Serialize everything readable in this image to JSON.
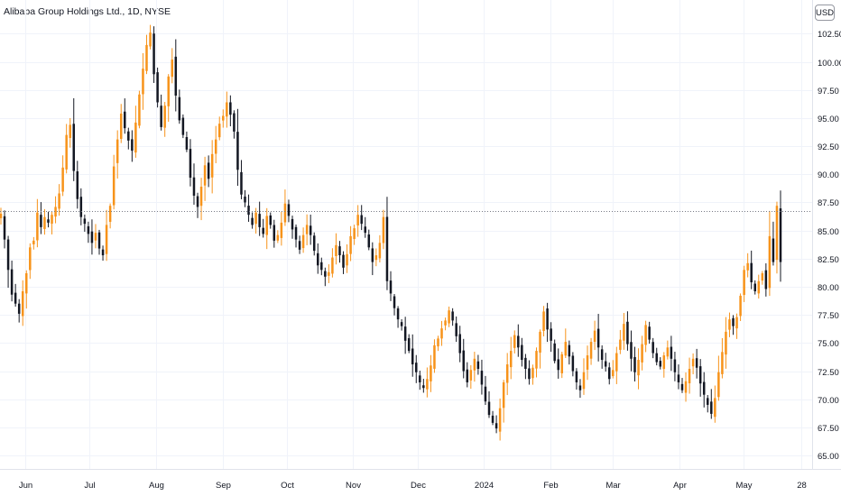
{
  "chart_data": {
    "type": "candlestick",
    "title": "Alibaba Group Holdings Ltd., 1D, NYSE",
    "currency": "USD",
    "y_ticks": [
      "65.00",
      "67.50",
      "70.00",
      "72.50",
      "75.00",
      "77.50",
      "80.00",
      "82.50",
      "85.00",
      "87.50",
      "90.00",
      "92.50",
      "95.00",
      "97.50",
      "100.00",
      "102.50"
    ],
    "ylim": [
      63.8,
      105.5
    ],
    "x_ticks": [
      {
        "label": "Jun",
        "day": 0
      },
      {
        "label": "Jul",
        "day": 30
      },
      {
        "label": "Aug",
        "day": 61
      },
      {
        "label": "Sep",
        "day": 92
      },
      {
        "label": "Oct",
        "day": 122
      },
      {
        "label": "Nov",
        "day": 153
      },
      {
        "label": "Dec",
        "day": 183
      },
      {
        "label": "2024",
        "day": 214
      },
      {
        "label": "Feb",
        "day": 245
      },
      {
        "label": "Mar",
        "day": 274
      },
      {
        "label": "Apr",
        "day": 305
      },
      {
        "label": "May",
        "day": 335
      },
      {
        "label": "28",
        "day": 362
      }
    ],
    "reference_price": 86.7,
    "closes": [
      86.5,
      84.2,
      81.5,
      79.3,
      78.5,
      77.6,
      79.6,
      81.2,
      83.5,
      84.1,
      86.6,
      85.3,
      86.2,
      85.7,
      86.4,
      87.1,
      88.3,
      90.6,
      93.5,
      94.4,
      90.3,
      87.8,
      86.2,
      85.6,
      84.7,
      83.9,
      84.8,
      83.4,
      82.8,
      85.5,
      87.2,
      90.7,
      93.1,
      95.4,
      94.1,
      93.0,
      92.1,
      94.6,
      97.1,
      99.4,
      101.5,
      102.6,
      98.9,
      96.4,
      94.2,
      96.1,
      98.7,
      100.2,
      97.0,
      94.8,
      93.5,
      92.2,
      89.7,
      88.1,
      87.1,
      88.9,
      90.8,
      89.6,
      91.8,
      93.1,
      94.5,
      95.2,
      96.4,
      95.3,
      93.8,
      90.4,
      88.2,
      87.5,
      86.4,
      85.5,
      86.6,
      85.3,
      84.7,
      86.3,
      85.5,
      84.1,
      84.6,
      85.7,
      87.4,
      86.3,
      85.1,
      84.2,
      83.3,
      84.6,
      85.5,
      84.6,
      83.2,
      81.9,
      81.5,
      80.9,
      81.3,
      82.6,
      83.7,
      82.8,
      81.7,
      82.9,
      84.5,
      85.2,
      86.4,
      85.6,
      84.8,
      83.5,
      82.2,
      82.8,
      83.9,
      86.2,
      80.5,
      79.4,
      78.1,
      77.1,
      76.5,
      75.2,
      74.3,
      73.1,
      72.4,
      71.5,
      71.0,
      71.8,
      73.0,
      74.8,
      75.4,
      76.3,
      77.0,
      77.9,
      77.0,
      75.6,
      74.1,
      72.5,
      71.5,
      72.6,
      73.6,
      72.7,
      71.3,
      69.8,
      68.6,
      67.9,
      67.4,
      69.2,
      71.5,
      73.1,
      74.3,
      75.7,
      74.6,
      73.5,
      72.7,
      71.8,
      72.8,
      74.3,
      76.0,
      77.8,
      76.2,
      75.2,
      73.4,
      72.6,
      74.0,
      75.1,
      73.8,
      72.5,
      71.5,
      70.8,
      72.4,
      73.9,
      75.1,
      76.1,
      74.6,
      73.5,
      72.9,
      71.8,
      72.6,
      74.1,
      75.3,
      76.7,
      74.9,
      73.6,
      72.4,
      73.5,
      74.9,
      76.6,
      75.3,
      74.1,
      73.3,
      72.9,
      73.9,
      74.6,
      73.6,
      72.4,
      71.5,
      70.8,
      71.6,
      72.7,
      73.6,
      72.8,
      71.4,
      70.4,
      69.5,
      68.7,
      70.1,
      72.4,
      74.2,
      76.0,
      77.1,
      76.5,
      77.3,
      79.2,
      81.5,
      82.1,
      80.4,
      79.6,
      80.5,
      81.2,
      79.8,
      84.5,
      82.2,
      87.2,
      82.2
    ]
  },
  "icons": {
    "currency_button": "usd-currency-icon"
  }
}
